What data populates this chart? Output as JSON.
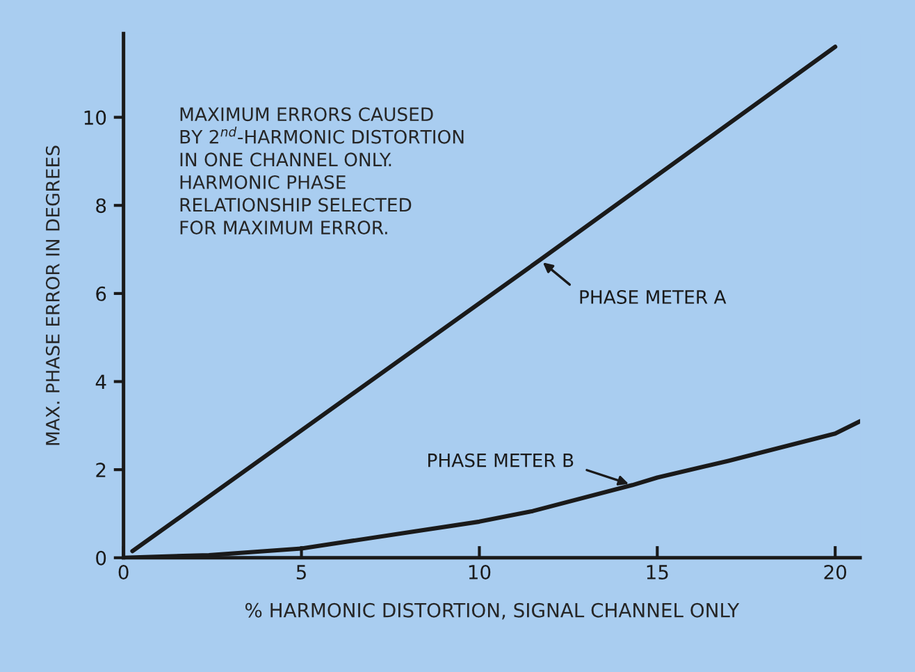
{
  "chart_data": {
    "type": "line",
    "xlabel": "% HARMONIC DISTORTION, SIGNAL CHANNEL ONLY",
    "ylabel": "MAX. PHASE ERROR IN DEGREES",
    "annotations": [
      "MAXIMUM ERRORS CAUSED\nBY 2$^{nd}$-HARMONIC DISTORTION\nIN ONE CHANNEL ONLY.\nHARMONIC PHASE\nRELATIONSHIP SELECTED\nFOR MAXIMUM ERROR."
    ],
    "series": [
      {
        "name": "PHASE METER A",
        "color": "#1a1a1a",
        "x": [
          0.25,
          11.7,
          20
        ],
        "values": [
          0.15,
          6.76,
          11.6
        ]
      },
      {
        "name": "PHASE METER B",
        "color": "#1a1a1a",
        "x": [
          0,
          2.4,
          5,
          10,
          11.5,
          14.3,
          15,
          17,
          20,
          20.7
        ],
        "values": [
          0,
          0.06,
          0.21,
          0.82,
          1.06,
          1.65,
          1.82,
          2.2,
          2.82,
          3.1
        ]
      }
    ],
    "xlim": [
      0,
      20.7
    ],
    "ylim": [
      0,
      11.9
    ],
    "xticks": [
      0,
      5,
      10,
      15,
      20
    ],
    "yticks": [
      0,
      2,
      4,
      6,
      8,
      10
    ],
    "grid": false,
    "legend": false,
    "marker": "none",
    "line_style": "solid"
  }
}
